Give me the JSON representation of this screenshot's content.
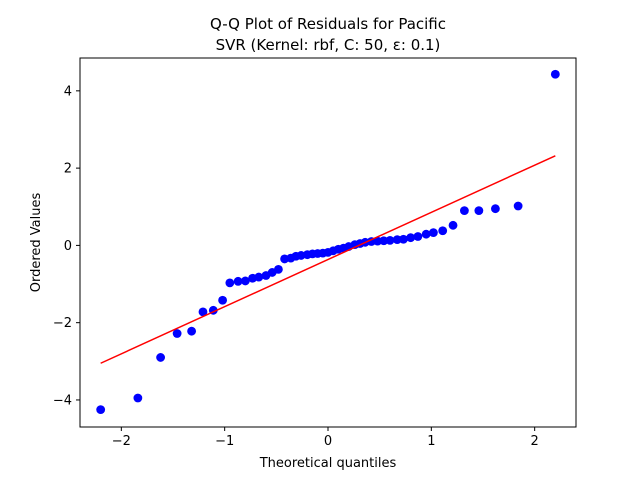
{
  "chart_data": {
    "type": "scatter",
    "title": "Q-Q Plot of Residuals for Pacific",
    "subtitle": "SVR (Kernel: rbf, C: 50, ε: 0.1)",
    "xlabel": "Theoretical quantiles",
    "ylabel": "Ordered Values",
    "xlim": [
      -2.4,
      2.4
    ],
    "ylim": [
      -4.7,
      4.85
    ],
    "xticks": [
      -2,
      -1,
      0,
      1,
      2
    ],
    "yticks": [
      -4,
      -2,
      0,
      2,
      4
    ],
    "xtick_labels": [
      "−2",
      "−1",
      "0",
      "1",
      "2"
    ],
    "ytick_labels": [
      "−4",
      "−2",
      "0",
      "2",
      "4"
    ],
    "grid": false,
    "series": [
      {
        "kind": "points",
        "color": "#0000ff",
        "x": [
          -2.2,
          -1.84,
          -1.62,
          -1.46,
          -1.32,
          -1.21,
          -1.11,
          -1.02,
          -0.95,
          -0.87,
          -0.8,
          -0.73,
          -0.67,
          -0.6,
          -0.54,
          -0.48,
          -0.42,
          -0.36,
          -0.31,
          -0.26,
          -0.2,
          -0.15,
          -0.1,
          -0.05,
          0.0,
          0.05,
          0.1,
          0.15,
          0.2,
          0.26,
          0.31,
          0.36,
          0.42,
          0.48,
          0.54,
          0.6,
          0.67,
          0.73,
          0.8,
          0.87,
          0.95,
          1.02,
          1.11,
          1.21,
          1.32,
          1.46,
          1.62,
          1.84,
          2.2
        ],
        "y": [
          -4.25,
          -3.95,
          -2.9,
          -2.28,
          -2.22,
          -1.72,
          -1.68,
          -1.42,
          -0.97,
          -0.93,
          -0.92,
          -0.85,
          -0.82,
          -0.78,
          -0.7,
          -0.62,
          -0.35,
          -0.33,
          -0.28,
          -0.26,
          -0.24,
          -0.22,
          -0.21,
          -0.2,
          -0.18,
          -0.14,
          -0.1,
          -0.07,
          -0.03,
          0.02,
          0.05,
          0.08,
          0.1,
          0.11,
          0.12,
          0.13,
          0.15,
          0.16,
          0.2,
          0.23,
          0.29,
          0.33,
          0.38,
          0.52,
          0.9,
          0.9,
          0.95,
          1.02,
          4.43
        ]
      },
      {
        "kind": "fit-line",
        "color": "#ff0000",
        "x": [
          -2.2,
          2.2
        ],
        "y": [
          -3.05,
          2.32
        ]
      }
    ]
  }
}
